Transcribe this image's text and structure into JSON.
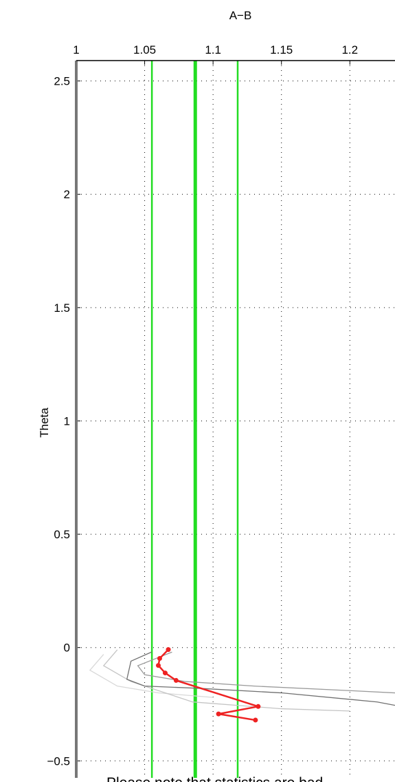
{
  "chart_data": {
    "type": "line",
    "title": "A−B",
    "y_label": "Theta",
    "annotation": "Please note that statistics are bad",
    "annotation_color": "#ff0000",
    "xlim": [
      1,
      1.233
    ],
    "ylim": [
      -0.575,
      2.59
    ],
    "xticks": [
      1,
      1.05,
      1.1,
      1.15,
      1.2
    ],
    "yticks": [
      2.5,
      2,
      1.5,
      1,
      0.5,
      0,
      {
        "value": -0.5,
        "label": "−0.5"
      }
    ],
    "grid": true,
    "reference_lines": [
      {
        "value": 1.0553,
        "color": "#22dd22",
        "style": "thin"
      },
      {
        "value": 1.087,
        "color": "#22dd22",
        "style": "thick"
      },
      {
        "value": 1.118,
        "color": "#22dd22",
        "style": "thin"
      }
    ],
    "series": [
      {
        "color": "#d8d8d8",
        "markers": false,
        "x": [
          1.02,
          1.01,
          1.03,
          1.06,
          1.1
        ],
        "values": [
          -0.03,
          -0.1,
          -0.17,
          -0.2,
          -0.22
        ]
      },
      {
        "color": "#c4c4c4",
        "markers": false,
        "x": [
          1.03,
          1.02,
          1.04,
          1.085,
          1.15,
          1.2
        ],
        "values": [
          -0.01,
          -0.08,
          -0.15,
          -0.24,
          -0.27,
          -0.28
        ]
      },
      {
        "color": "#9a9a9a",
        "markers": false,
        "x": [
          1.07,
          1.045,
          1.05,
          1.08,
          1.13,
          1.2,
          1.233
        ],
        "values": [
          -0.02,
          -0.08,
          -0.12,
          -0.15,
          -0.17,
          -0.19,
          -0.2
        ]
      },
      {
        "color": "#707070",
        "markers": false,
        "x": [
          1.055,
          1.04,
          1.037,
          1.05,
          1.09,
          1.15,
          1.22,
          1.233
        ],
        "values": [
          -0.02,
          -0.06,
          -0.14,
          -0.17,
          -0.18,
          -0.2,
          -0.24,
          -0.255
        ]
      },
      {
        "color": "#ee2222",
        "markers": true,
        "x": [
          1.0673,
          1.061,
          1.06,
          1.065,
          1.073,
          1.133,
          1.104,
          1.131
        ],
        "values": [
          -0.009,
          -0.048,
          -0.079,
          -0.112,
          -0.145,
          -0.26,
          -0.293,
          -0.32
        ]
      }
    ]
  }
}
